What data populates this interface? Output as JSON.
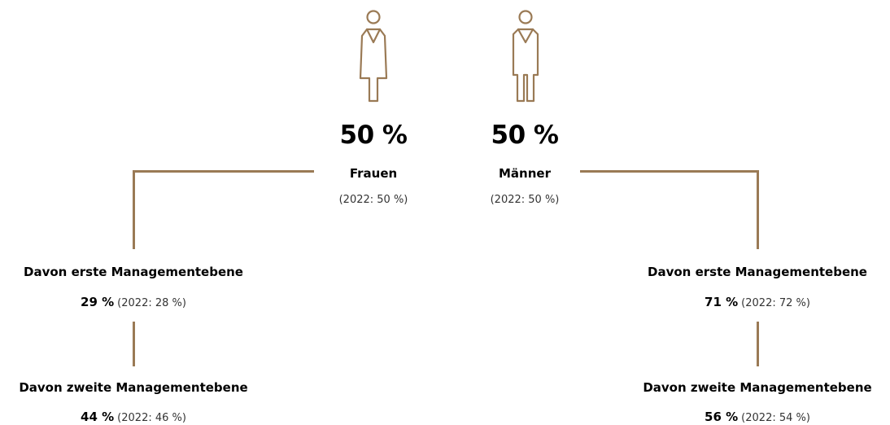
{
  "colors": {
    "accent": "#9a7a55",
    "text": "#000000"
  },
  "women": {
    "icon": "woman-icon",
    "percent": "50 %",
    "label": "Frauen",
    "prev": "(2022: 50 %)",
    "level1": {
      "label": "Davon erste Managementebene",
      "value": "29 %",
      "prev": "(2022: 28 %)"
    },
    "level2": {
      "label": "Davon zweite Managementebene",
      "value": "44 %",
      "prev": "(2022: 46 %)"
    }
  },
  "men": {
    "icon": "man-icon",
    "percent": "50 %",
    "label": "Männer",
    "prev": "(2022: 50 %)",
    "level1": {
      "label": "Davon erste Managementebene",
      "value": "71 %",
      "prev": "(2022: 72 %)"
    },
    "level2": {
      "label": "Davon zweite Managementebene",
      "value": "56 %",
      "prev": "(2022: 54 %)"
    }
  }
}
